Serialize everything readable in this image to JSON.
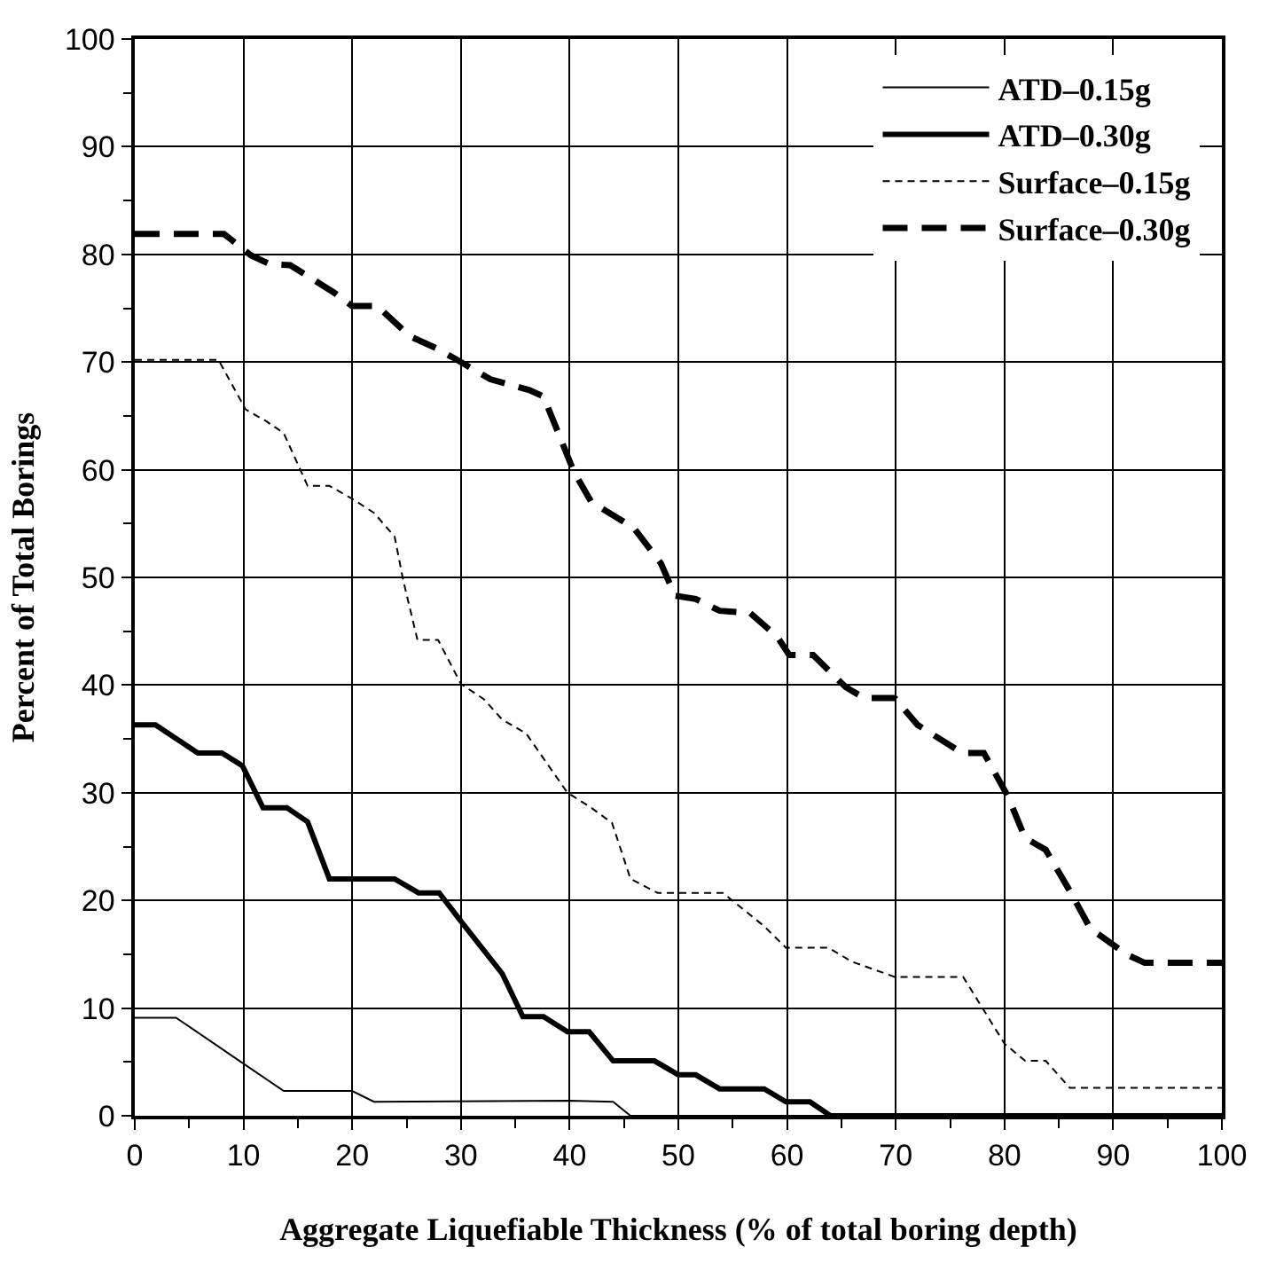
{
  "chart_data": {
    "type": "line",
    "xlabel": "Aggregate Liquefiable Thickness (% of total boring depth)",
    "ylabel": "Percent of Total Borings",
    "xlim": [
      0,
      100
    ],
    "xticks": [
      0,
      10,
      20,
      30,
      40,
      50,
      60,
      70,
      80,
      90,
      100
    ],
    "ylim": [
      0,
      100
    ],
    "yticks": [
      0,
      10,
      20,
      30,
      40,
      50,
      60,
      70,
      80,
      90,
      100
    ],
    "grid": true,
    "legend": "top right",
    "marker": "none",
    "series": [
      {
        "name": "ATD–0.15g",
        "color": "#000000",
        "line_style": "solid",
        "x": [
          0,
          3.8,
          13.7,
          20,
          22,
          40,
          44,
          45.6,
          100
        ],
        "values": [
          9.1,
          9.1,
          2.3,
          2.3,
          1.3,
          1.4,
          1.3,
          0,
          0
        ]
      },
      {
        "name": "ATD–0.30g",
        "color": "#000000",
        "line_style": "solid",
        "x": [
          0,
          1.9,
          5.8,
          8,
          9.9,
          11.8,
          14,
          15.9,
          17.9,
          23.9,
          26.1,
          28,
          29.9,
          33.8,
          35.7,
          37.6,
          39.8,
          41.8,
          44,
          47.8,
          50,
          51.6,
          53.8,
          57.9,
          59.9,
          62.1,
          64,
          100
        ],
        "values": [
          36.3,
          36.3,
          33.7,
          33.7,
          32.5,
          28.6,
          28.6,
          27.3,
          22,
          22,
          20.7,
          20.7,
          18.2,
          13.2,
          9.2,
          9.2,
          7.8,
          7.8,
          5.1,
          5.1,
          3.8,
          3.8,
          2.5,
          2.5,
          1.3,
          1.3,
          0,
          0
        ]
      },
      {
        "name": "Surface–0.15g",
        "color": "#000000",
        "line_style": "dashed",
        "x": [
          0,
          7.7,
          10.2,
          12.1,
          13.7,
          15.9,
          17.9,
          20,
          22,
          23.9,
          24.7,
          26,
          27.9,
          30,
          32.1,
          33.8,
          36,
          39.8,
          42,
          43.9,
          45.6,
          48.1,
          54.1,
          57.9,
          59.9,
          63.8,
          66,
          69.9,
          76.2,
          80,
          81.9,
          83.8,
          86,
          100
        ],
        "values": [
          70.2,
          70.2,
          65.6,
          64.5,
          63.4,
          58.5,
          58.5,
          57.3,
          56,
          53.8,
          49.7,
          44.2,
          44.2,
          40.1,
          38.7,
          36.8,
          35.5,
          30,
          28.6,
          27.2,
          22,
          20.7,
          20.7,
          17.6,
          15.6,
          15.6,
          14.3,
          12.9,
          12.9,
          6.7,
          5.1,
          5.1,
          2.6,
          2.6
        ]
      },
      {
        "name": "Surface–0.30g",
        "color": "#000000",
        "line_style": "dashed",
        "x": [
          0,
          8.2,
          10.7,
          12.4,
          14.3,
          18.4,
          20,
          22.3,
          25.3,
          27.7,
          30,
          32.7,
          36.3,
          37.6,
          40.4,
          42,
          45.9,
          48.4,
          49.7,
          51.6,
          53.8,
          56.6,
          59.1,
          60.2,
          62.4,
          65.4,
          67.1,
          69.9,
          72,
          76.1,
          78.1,
          80.3,
          81.9,
          83.8,
          86,
          87.9,
          91.2,
          92.9,
          100
        ],
        "values": [
          81.9,
          81.9,
          79.9,
          79.1,
          79,
          76.4,
          75.2,
          75.2,
          72.4,
          71.3,
          70,
          68.4,
          67.4,
          66.8,
          59.8,
          57,
          54.6,
          51.3,
          48.3,
          48,
          46.9,
          46.7,
          44.5,
          42.8,
          42.8,
          39.8,
          38.8,
          38.8,
          36.3,
          33.7,
          33.7,
          29.7,
          25.8,
          24.7,
          20.9,
          17.4,
          15,
          14.2,
          14.2
        ]
      }
    ]
  }
}
